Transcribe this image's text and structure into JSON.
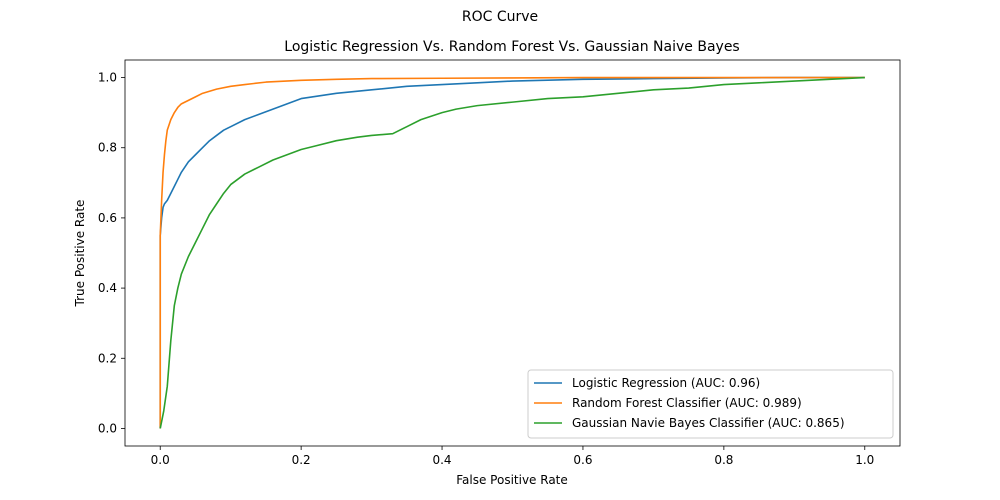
{
  "chart_data": {
    "type": "line",
    "suptitle": "ROC Curve",
    "title": "Logistic Regression Vs. Random Forest Vs. Gaussian Naive Bayes",
    "xlabel": "False Positive Rate",
    "ylabel": "True Positive Rate",
    "xlim": [
      -0.05,
      1.05
    ],
    "ylim": [
      -0.05,
      1.05
    ],
    "xticks": [
      0.0,
      0.2,
      0.4,
      0.6,
      0.8,
      1.0
    ],
    "xtick_labels": [
      "0.0",
      "0.2",
      "0.4",
      "0.6",
      "0.8",
      "1.0"
    ],
    "yticks": [
      0.0,
      0.2,
      0.4,
      0.6,
      0.8,
      1.0
    ],
    "ytick_labels": [
      "0.0",
      "0.2",
      "0.4",
      "0.6",
      "0.8",
      "1.0"
    ],
    "grid": false,
    "legend_position": "lower-right",
    "series": [
      {
        "name": "Logistic Regression (AUC: 0.96)",
        "color": "#1f77b4",
        "x": [
          0.0,
          0.0,
          0.002,
          0.004,
          0.006,
          0.01,
          0.015,
          0.02,
          0.025,
          0.03,
          0.04,
          0.05,
          0.06,
          0.07,
          0.08,
          0.09,
          0.1,
          0.12,
          0.14,
          0.16,
          0.18,
          0.2,
          0.25,
          0.3,
          0.35,
          0.4,
          0.45,
          0.5,
          0.6,
          0.7,
          0.8,
          0.9,
          1.0
        ],
        "y": [
          0.0,
          0.55,
          0.6,
          0.63,
          0.64,
          0.65,
          0.67,
          0.69,
          0.71,
          0.73,
          0.76,
          0.78,
          0.8,
          0.82,
          0.835,
          0.85,
          0.86,
          0.88,
          0.895,
          0.91,
          0.925,
          0.94,
          0.955,
          0.965,
          0.975,
          0.98,
          0.985,
          0.99,
          0.995,
          0.997,
          0.999,
          1.0,
          1.0
        ]
      },
      {
        "name": "Random Forest Classifier (AUC: 0.989)",
        "color": "#ff7f0e",
        "x": [
          0.0,
          0.0,
          0.002,
          0.004,
          0.006,
          0.008,
          0.01,
          0.015,
          0.02,
          0.025,
          0.03,
          0.04,
          0.05,
          0.06,
          0.08,
          0.1,
          0.12,
          0.15,
          0.2,
          0.25,
          0.3,
          0.4,
          0.5,
          0.6,
          0.8,
          1.0
        ],
        "y": [
          0.0,
          0.55,
          0.65,
          0.73,
          0.78,
          0.82,
          0.85,
          0.88,
          0.9,
          0.915,
          0.925,
          0.935,
          0.945,
          0.955,
          0.967,
          0.975,
          0.98,
          0.987,
          0.992,
          0.995,
          0.997,
          0.998,
          0.999,
          1.0,
          1.0,
          1.0
        ]
      },
      {
        "name": "Gaussian Navie Bayes Classifier (AUC: 0.865)",
        "color": "#2ca02c",
        "x": [
          0.0,
          0.002,
          0.005,
          0.01,
          0.015,
          0.02,
          0.025,
          0.03,
          0.04,
          0.05,
          0.06,
          0.07,
          0.08,
          0.09,
          0.1,
          0.12,
          0.14,
          0.16,
          0.18,
          0.2,
          0.22,
          0.25,
          0.28,
          0.3,
          0.33,
          0.35,
          0.37,
          0.4,
          0.42,
          0.45,
          0.5,
          0.55,
          0.6,
          0.65,
          0.7,
          0.75,
          0.8,
          0.85,
          0.9,
          0.95,
          1.0
        ],
        "y": [
          0.0,
          0.02,
          0.05,
          0.12,
          0.25,
          0.35,
          0.4,
          0.44,
          0.49,
          0.53,
          0.57,
          0.61,
          0.64,
          0.67,
          0.695,
          0.725,
          0.745,
          0.765,
          0.78,
          0.795,
          0.805,
          0.82,
          0.83,
          0.835,
          0.84,
          0.86,
          0.88,
          0.9,
          0.91,
          0.92,
          0.93,
          0.94,
          0.945,
          0.955,
          0.965,
          0.97,
          0.98,
          0.985,
          0.99,
          0.995,
          1.0
        ]
      }
    ]
  }
}
